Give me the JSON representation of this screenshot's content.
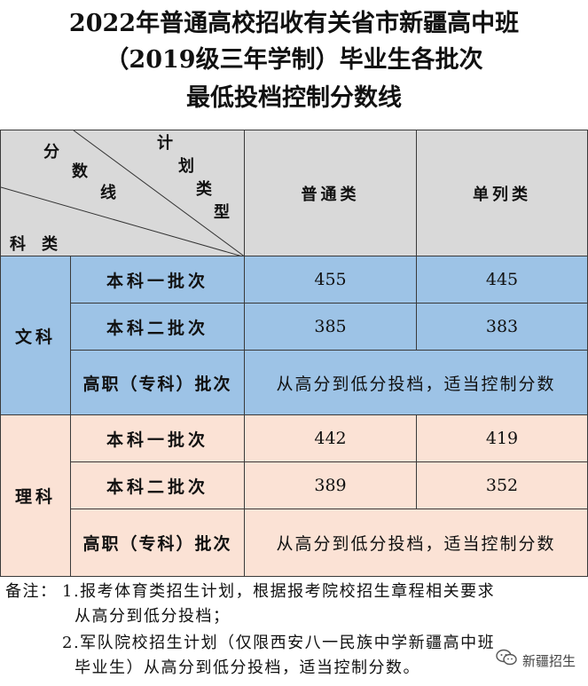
{
  "title": {
    "line1": "2022年普通高校招收有关省市新疆高中班",
    "line2": "（2019级三年学制）毕业生各批次",
    "line3": "最低投档控制分数线"
  },
  "header": {
    "diag_score_chars": [
      "分",
      "数",
      "线"
    ],
    "diag_plan_chars": [
      "计",
      "划",
      "类",
      "型"
    ],
    "diag_subject": "科　类",
    "col_regular": "普通类",
    "col_separate": "单列类"
  },
  "sections": [
    {
      "name": "文科",
      "rows": [
        {
          "batch": "本科一批次",
          "regular": "455",
          "separate": "445"
        },
        {
          "batch": "本科二批次",
          "regular": "385",
          "separate": "383"
        },
        {
          "batch": "高职（专科）批次",
          "merged": "从高分到低分投档，适当控制分数"
        }
      ]
    },
    {
      "name": "理科",
      "rows": [
        {
          "batch": "本科一批次",
          "regular": "442",
          "separate": "419"
        },
        {
          "batch": "本科二批次",
          "regular": "389",
          "separate": "352"
        },
        {
          "batch": "高职（专科）批次",
          "merged": "从高分到低分投档，适当控制分数"
        }
      ]
    }
  ],
  "notes": {
    "label": "备注：",
    "n1_line1": "1.报考体育类招生计划，根据报考院校招生章程相关要求",
    "n1_line2": "从高分到低分投档；",
    "n2_line1": "2.军队院校招生计划（仅限西安八一民族中学新疆高中班",
    "n2_line2": "毕业生）从高分到低分投档，适当控制分数。"
  },
  "watermark": {
    "icon": "wechat-icon",
    "text": "新疆招生"
  },
  "colors": {
    "header_bg": "#d9d9d9",
    "liberal_arts_bg": "#9dc3e6",
    "science_bg": "#fbe2d5"
  }
}
